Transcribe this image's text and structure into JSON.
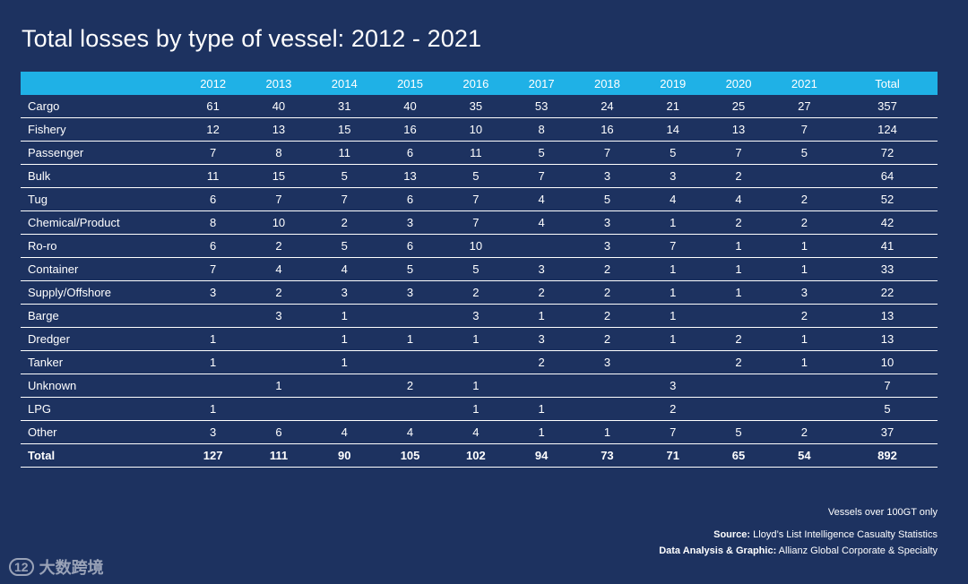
{
  "chart_data": {
    "type": "table",
    "title": "Total losses by type of vessel: 2012 - 2021",
    "columns": [
      "",
      "2012",
      "2013",
      "2014",
      "2015",
      "2016",
      "2017",
      "2018",
      "2019",
      "2020",
      "2021",
      "Total"
    ],
    "rows": [
      {
        "label": "Cargo",
        "values": [
          "61",
          "40",
          "31",
          "40",
          "35",
          "53",
          "24",
          "21",
          "25",
          "27",
          "357"
        ]
      },
      {
        "label": "Fishery",
        "values": [
          "12",
          "13",
          "15",
          "16",
          "10",
          "8",
          "16",
          "14",
          "13",
          "7",
          "124"
        ]
      },
      {
        "label": "Passenger",
        "values": [
          "7",
          "8",
          "11",
          "6",
          "11",
          "5",
          "7",
          "5",
          "7",
          "5",
          "72"
        ]
      },
      {
        "label": "Bulk",
        "values": [
          "11",
          "15",
          "5",
          "13",
          "5",
          "7",
          "3",
          "3",
          "2",
          "",
          "64"
        ]
      },
      {
        "label": "Tug",
        "values": [
          "6",
          "7",
          "7",
          "6",
          "7",
          "4",
          "5",
          "4",
          "4",
          "2",
          "52"
        ]
      },
      {
        "label": "Chemical/Product",
        "values": [
          "8",
          "10",
          "2",
          "3",
          "7",
          "4",
          "3",
          "1",
          "2",
          "2",
          "42"
        ]
      },
      {
        "label": "Ro-ro",
        "values": [
          "6",
          "2",
          "5",
          "6",
          "10",
          "",
          "3",
          "7",
          "1",
          "1",
          "41"
        ]
      },
      {
        "label": "Container",
        "values": [
          "7",
          "4",
          "4",
          "5",
          "5",
          "3",
          "2",
          "1",
          "1",
          "1",
          "33"
        ]
      },
      {
        "label": "Supply/Offshore",
        "values": [
          "3",
          "2",
          "3",
          "3",
          "2",
          "2",
          "2",
          "1",
          "1",
          "3",
          "22"
        ]
      },
      {
        "label": "Barge",
        "values": [
          "",
          "3",
          "1",
          "",
          "3",
          "1",
          "2",
          "1",
          "",
          "2",
          "13"
        ]
      },
      {
        "label": "Dredger",
        "values": [
          "1",
          "",
          "1",
          "1",
          "1",
          "3",
          "2",
          "1",
          "2",
          "1",
          "13"
        ]
      },
      {
        "label": "Tanker",
        "values": [
          "1",
          "",
          "1",
          "",
          "",
          "2",
          "3",
          "",
          "2",
          "1",
          "10"
        ]
      },
      {
        "label": "Unknown",
        "values": [
          "",
          "1",
          "",
          "2",
          "1",
          "",
          "",
          "3",
          "",
          "",
          "7"
        ]
      },
      {
        "label": "LPG",
        "values": [
          "1",
          "",
          "",
          "",
          "1",
          "1",
          "",
          "2",
          "",
          "",
          "5"
        ]
      },
      {
        "label": "Other",
        "values": [
          "3",
          "6",
          "4",
          "4",
          "4",
          "1",
          "1",
          "7",
          "5",
          "2",
          "37"
        ]
      }
    ],
    "total_row": {
      "label": "Total",
      "values": [
        "127",
        "111",
        "90",
        "105",
        "102",
        "94",
        "73",
        "71",
        "65",
        "54",
        "892"
      ]
    }
  },
  "notes": {
    "scope": "Vessels over 100GT only",
    "source_label": "Source:",
    "source_text": " Lloyd’s List Intelligence Casualty Statistics",
    "analysis_label": "Data Analysis & Graphic:",
    "analysis_text": " Allianz Global Corporate & Specialty"
  },
  "watermark": {
    "logo": "12",
    "text": "大数跨境"
  },
  "colors": {
    "background": "#1d3260",
    "header": "#1fb1e6"
  }
}
